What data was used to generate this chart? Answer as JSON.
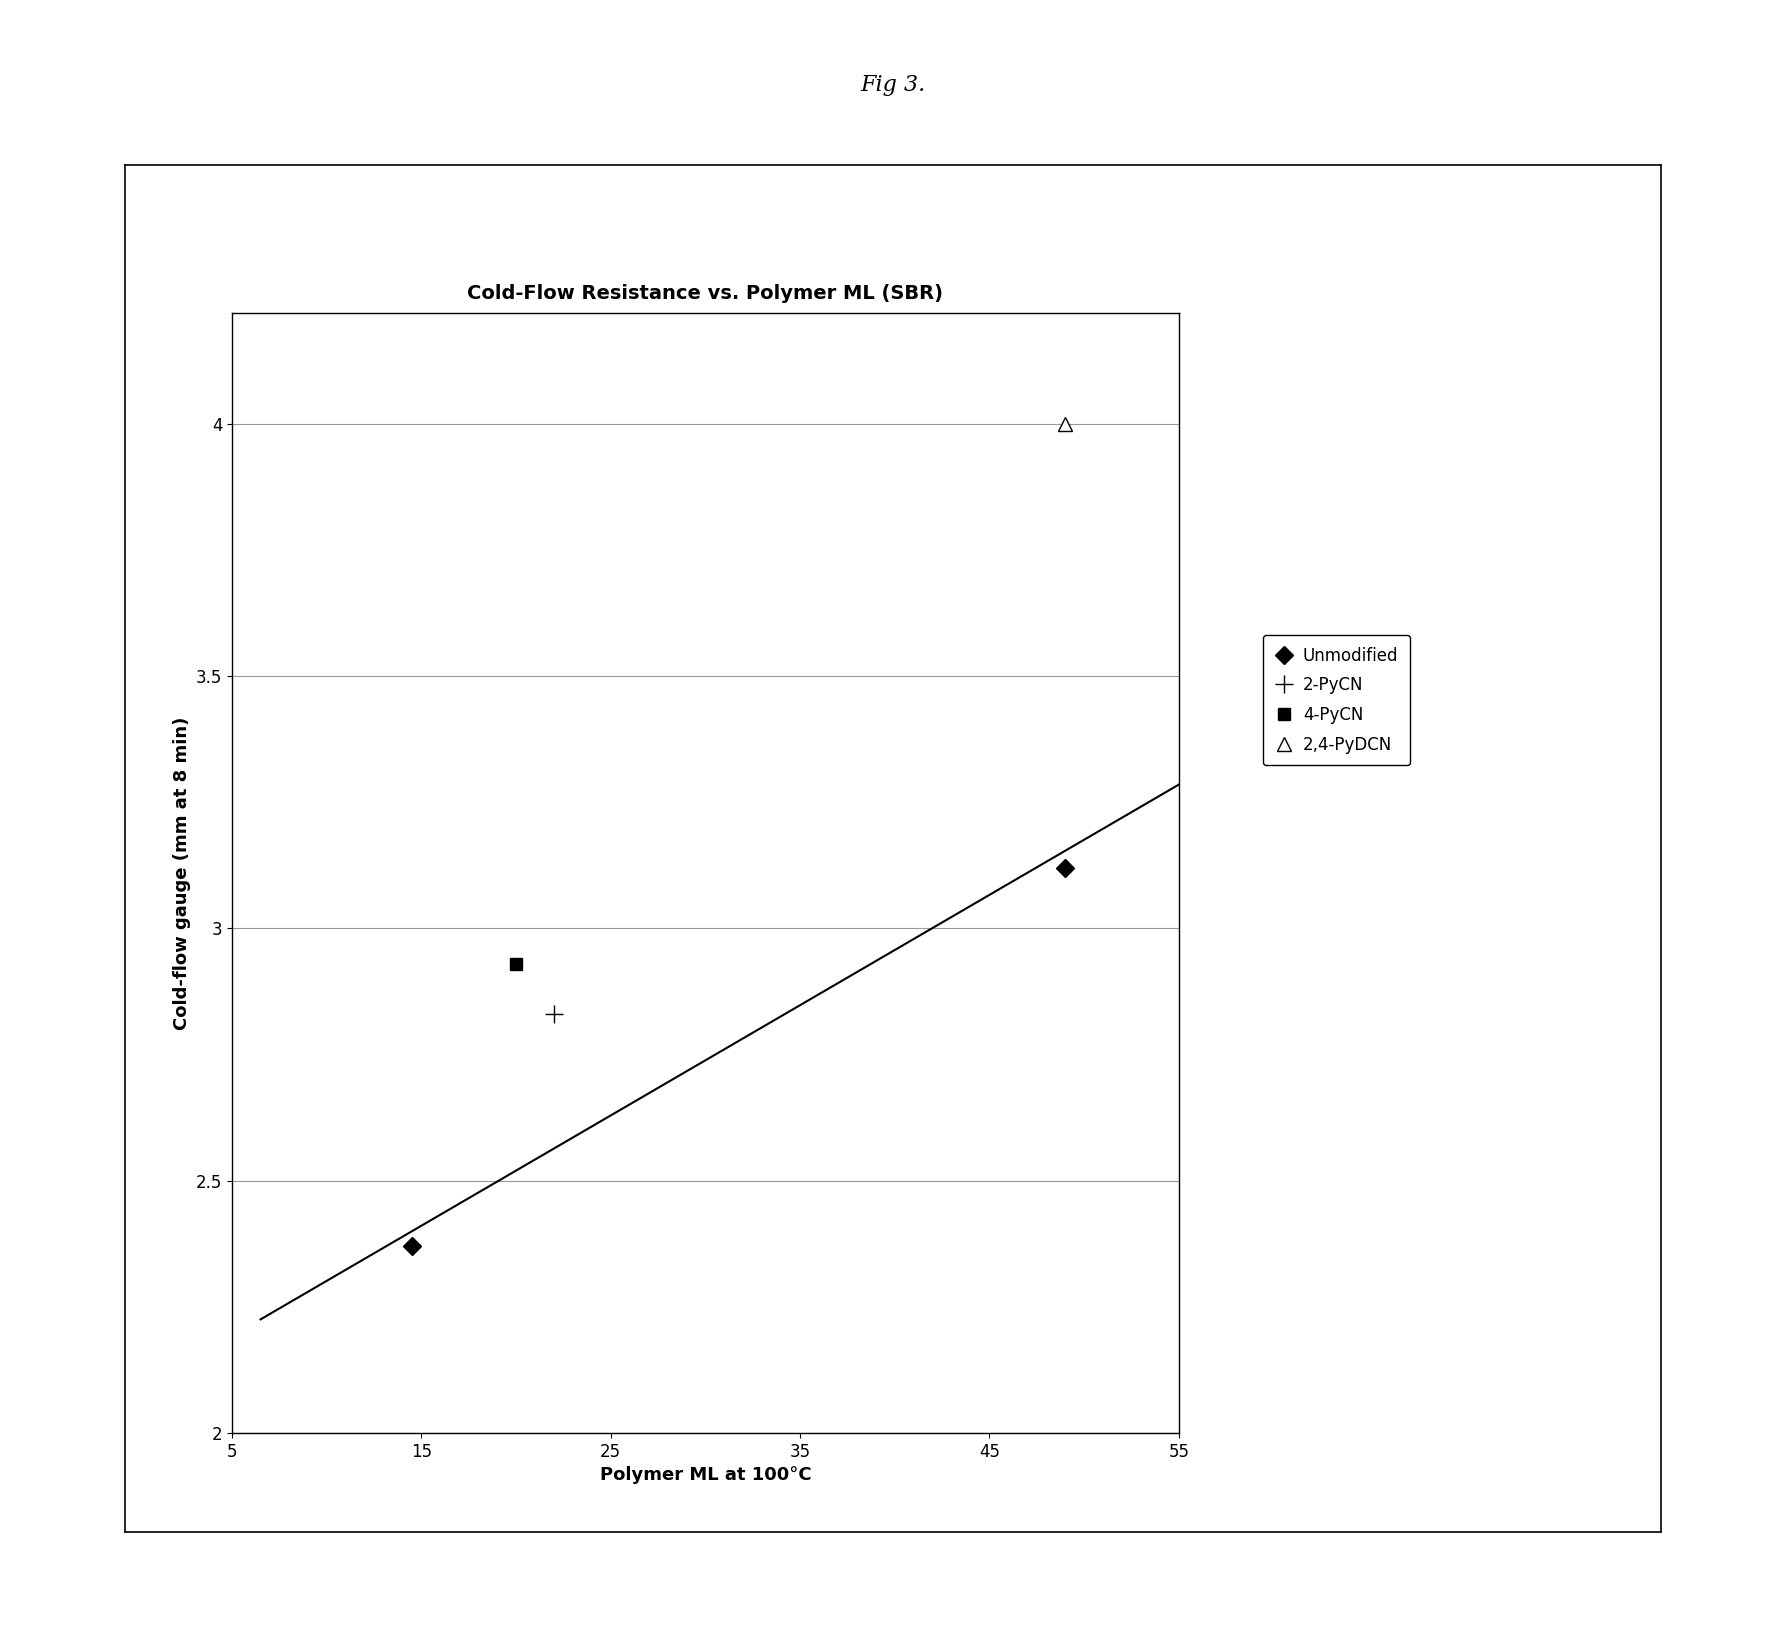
{
  "title": "Cold-Flow Resistance vs. Polymer ML (SBR)",
  "xlabel": "Polymer ML at 100°C",
  "ylabel": "Cold-flow gauge (mm at 8 min)",
  "fig_title": "Fig 3.",
  "xlim": [
    5,
    55
  ],
  "ylim": [
    2.0,
    4.22
  ],
  "xticks": [
    5,
    15,
    25,
    35,
    45,
    55
  ],
  "yticks": [
    2.0,
    2.5,
    3.0,
    3.5,
    4.0
  ],
  "series": [
    {
      "label": "Unmodified",
      "x": [
        14.5,
        49.0
      ],
      "y": [
        2.37,
        3.12
      ],
      "marker": "D",
      "mfc": "black",
      "mec": "black",
      "ms": 9
    },
    {
      "label": "2-PyCN",
      "x": [
        22.0
      ],
      "y": [
        2.83
      ],
      "marker": "+",
      "mfc": "black",
      "mec": "black",
      "ms": 13
    },
    {
      "label": "4-PyCN",
      "x": [
        20.0
      ],
      "y": [
        2.93
      ],
      "marker": "s",
      "mfc": "black",
      "mec": "black",
      "ms": 9
    },
    {
      "label": "2,4-PyDCN",
      "x": [
        49.0
      ],
      "y": [
        4.0
      ],
      "marker": "^",
      "mfc": "white",
      "mec": "black",
      "ms": 10
    }
  ],
  "trendline": {
    "x": [
      6.5,
      55.0
    ],
    "y": [
      2.225,
      3.285
    ],
    "color": "black",
    "linewidth": 1.5
  },
  "background_color": "white",
  "plot_bg_color": "white",
  "grid_color": "#999999",
  "title_fontsize": 14,
  "label_fontsize": 13,
  "tick_fontsize": 12,
  "legend_fontsize": 12,
  "fig_title_fontsize": 16
}
